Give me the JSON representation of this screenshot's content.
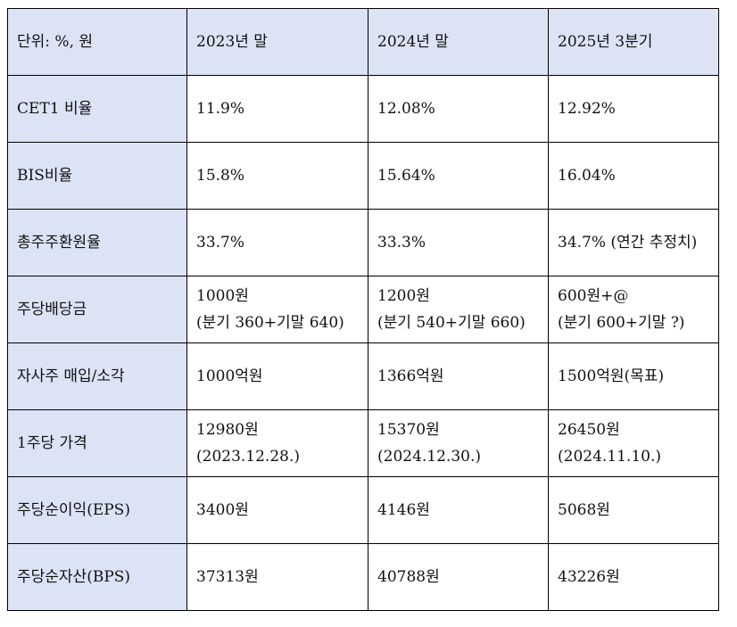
{
  "table": {
    "header": [
      "단위: %, 원",
      "2023년 말",
      "2024년 말",
      "2025년 3분기"
    ],
    "rows": [
      [
        "CET1 비율",
        "11.9%",
        "12.08%",
        "12.92%"
      ],
      [
        "BIS비율",
        "15.8%",
        "15.64%",
        "16.04%"
      ],
      [
        "총주주환원율",
        "33.7%",
        "33.3%",
        "34.7% (연간 추정치)"
      ],
      [
        "주당배당금",
        [
          "1000원",
          "(분기 360+기말 640)"
        ],
        [
          "1200원",
          "(분기 540+기말 660)"
        ],
        [
          "600원+@",
          "(분기 600+기말 ?)"
        ]
      ],
      [
        "자사주 매입/소각",
        "1000억원",
        "1366억원",
        "1500억원(목표)"
      ],
      [
        "1주당 가격",
        [
          "12980원",
          "(2023.12.28.)"
        ],
        [
          "15370원",
          "(2024.12.30.)"
        ],
        [
          "26450원",
          "(2024.11.10.)"
        ]
      ],
      [
        "주당순이익(EPS)",
        "3400원",
        "4146원",
        "5068원"
      ],
      [
        "주당순자산(BPS)",
        "37313원",
        "40788원",
        "43226원"
      ]
    ]
  }
}
